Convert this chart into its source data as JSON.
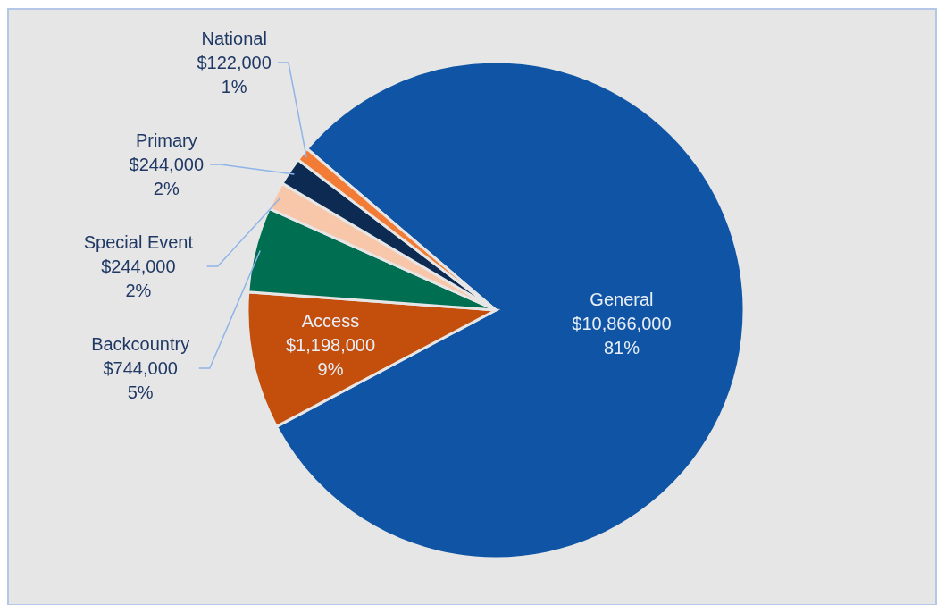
{
  "chart_data": {
    "type": "pie",
    "categories": [
      "General",
      "Access",
      "Backcountry",
      "Special Event",
      "Primary",
      "National"
    ],
    "values": [
      10866000,
      1198000,
      744000,
      244000,
      244000,
      122000
    ],
    "colors": [
      "#1055a5",
      "#c44f0c",
      "#006e51",
      "#f8c6a9",
      "#0d2a52",
      "#f27b35"
    ],
    "value_labels": [
      "$10,866,000\n81%",
      "$1,198,000\n9%",
      "$744,000\n5%",
      "$244,000\n2%",
      "$244,000\n2%",
      "$122,000\n1%"
    ]
  }
}
